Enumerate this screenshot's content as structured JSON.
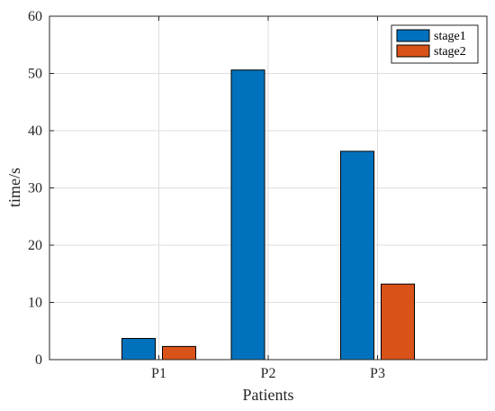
{
  "chart_data": {
    "type": "bar",
    "categories": [
      "P1",
      "P2",
      "P3"
    ],
    "series": [
      {
        "name": "stage1",
        "values": [
          3.7,
          50.6,
          36.4
        ],
        "color": "#0072BD"
      },
      {
        "name": "stage2",
        "values": [
          2.3,
          0,
          13.2
        ],
        "color": "#D95319"
      }
    ],
    "xlabel": "Patients",
    "ylabel": "time/s",
    "ylim": [
      0,
      60
    ],
    "yticks": [
      0,
      10,
      20,
      30,
      40,
      50,
      60
    ],
    "grid": true,
    "legend": "top-right"
  }
}
